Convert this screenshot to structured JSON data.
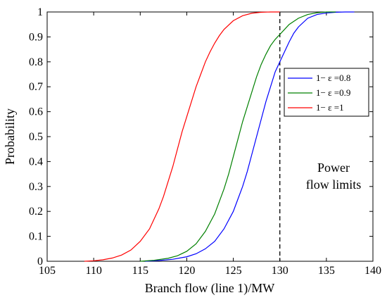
{
  "chart_data": {
    "type": "line",
    "title": "",
    "xlabel": "Branch flow (line 1)/MW",
    "ylabel": "Probability",
    "xlim": [
      105,
      140
    ],
    "ylim": [
      0,
      1
    ],
    "xticks": [
      105,
      110,
      115,
      120,
      125,
      130,
      135,
      140
    ],
    "yticks": [
      0,
      0.1,
      0.2,
      0.3,
      0.4,
      0.5,
      0.6,
      0.7,
      0.8,
      0.9,
      1
    ],
    "grid": false,
    "legend_position": "top-right",
    "series": [
      {
        "name": "1− ε =0.8",
        "color": "#0000ff",
        "x": [
          115.5,
          117,
          118.5,
          120,
          121,
          122,
          123,
          124,
          125,
          125.5,
          126,
          126.5,
          127,
          127.5,
          128,
          128.5,
          129,
          129.5,
          130,
          130.5,
          131,
          131.5,
          132,
          133,
          134,
          135,
          136,
          137,
          138
        ],
        "values": [
          0,
          0.003,
          0.008,
          0.018,
          0.03,
          0.05,
          0.08,
          0.13,
          0.2,
          0.25,
          0.3,
          0.36,
          0.43,
          0.5,
          0.57,
          0.64,
          0.7,
          0.76,
          0.8,
          0.84,
          0.88,
          0.915,
          0.94,
          0.975,
          0.99,
          0.996,
          0.999,
          1,
          1
        ]
      },
      {
        "name": "1− ε =0.9",
        "color": "#008000",
        "x": [
          115,
          116.5,
          118,
          119,
          120,
          121,
          122,
          123,
          123.5,
          124,
          124.5,
          125,
          125.5,
          126,
          126.5,
          127,
          127.5,
          128,
          128.5,
          129,
          129.5,
          130,
          130.5,
          131,
          132,
          133,
          134,
          135,
          136
        ],
        "values": [
          0,
          0.004,
          0.012,
          0.022,
          0.04,
          0.07,
          0.12,
          0.19,
          0.24,
          0.29,
          0.35,
          0.42,
          0.49,
          0.56,
          0.62,
          0.68,
          0.74,
          0.79,
          0.83,
          0.865,
          0.89,
          0.91,
          0.93,
          0.95,
          0.975,
          0.99,
          0.997,
          1,
          1
        ]
      },
      {
        "name": "1− ε =1",
        "color": "#ff0000",
        "x": [
          109,
          110,
          111,
          112,
          113,
          114,
          115,
          116,
          117,
          117.5,
          118,
          118.5,
          119,
          119.5,
          120,
          120.5,
          121,
          121.5,
          122,
          122.5,
          123,
          123.5,
          124,
          125,
          126,
          127,
          128,
          129,
          130
        ],
        "values": [
          0,
          0.002,
          0.006,
          0.013,
          0.025,
          0.045,
          0.08,
          0.13,
          0.21,
          0.26,
          0.32,
          0.38,
          0.45,
          0.52,
          0.58,
          0.64,
          0.7,
          0.75,
          0.8,
          0.84,
          0.875,
          0.905,
          0.93,
          0.965,
          0.985,
          0.995,
          0.999,
          1,
          1
        ]
      }
    ],
    "reference_lines": [
      {
        "axis": "x",
        "value": 130,
        "style": "dashed",
        "color": "#000000"
      }
    ],
    "annotations": [
      {
        "lines": [
          "Power",
          "flow limits"
        ]
      }
    ]
  }
}
